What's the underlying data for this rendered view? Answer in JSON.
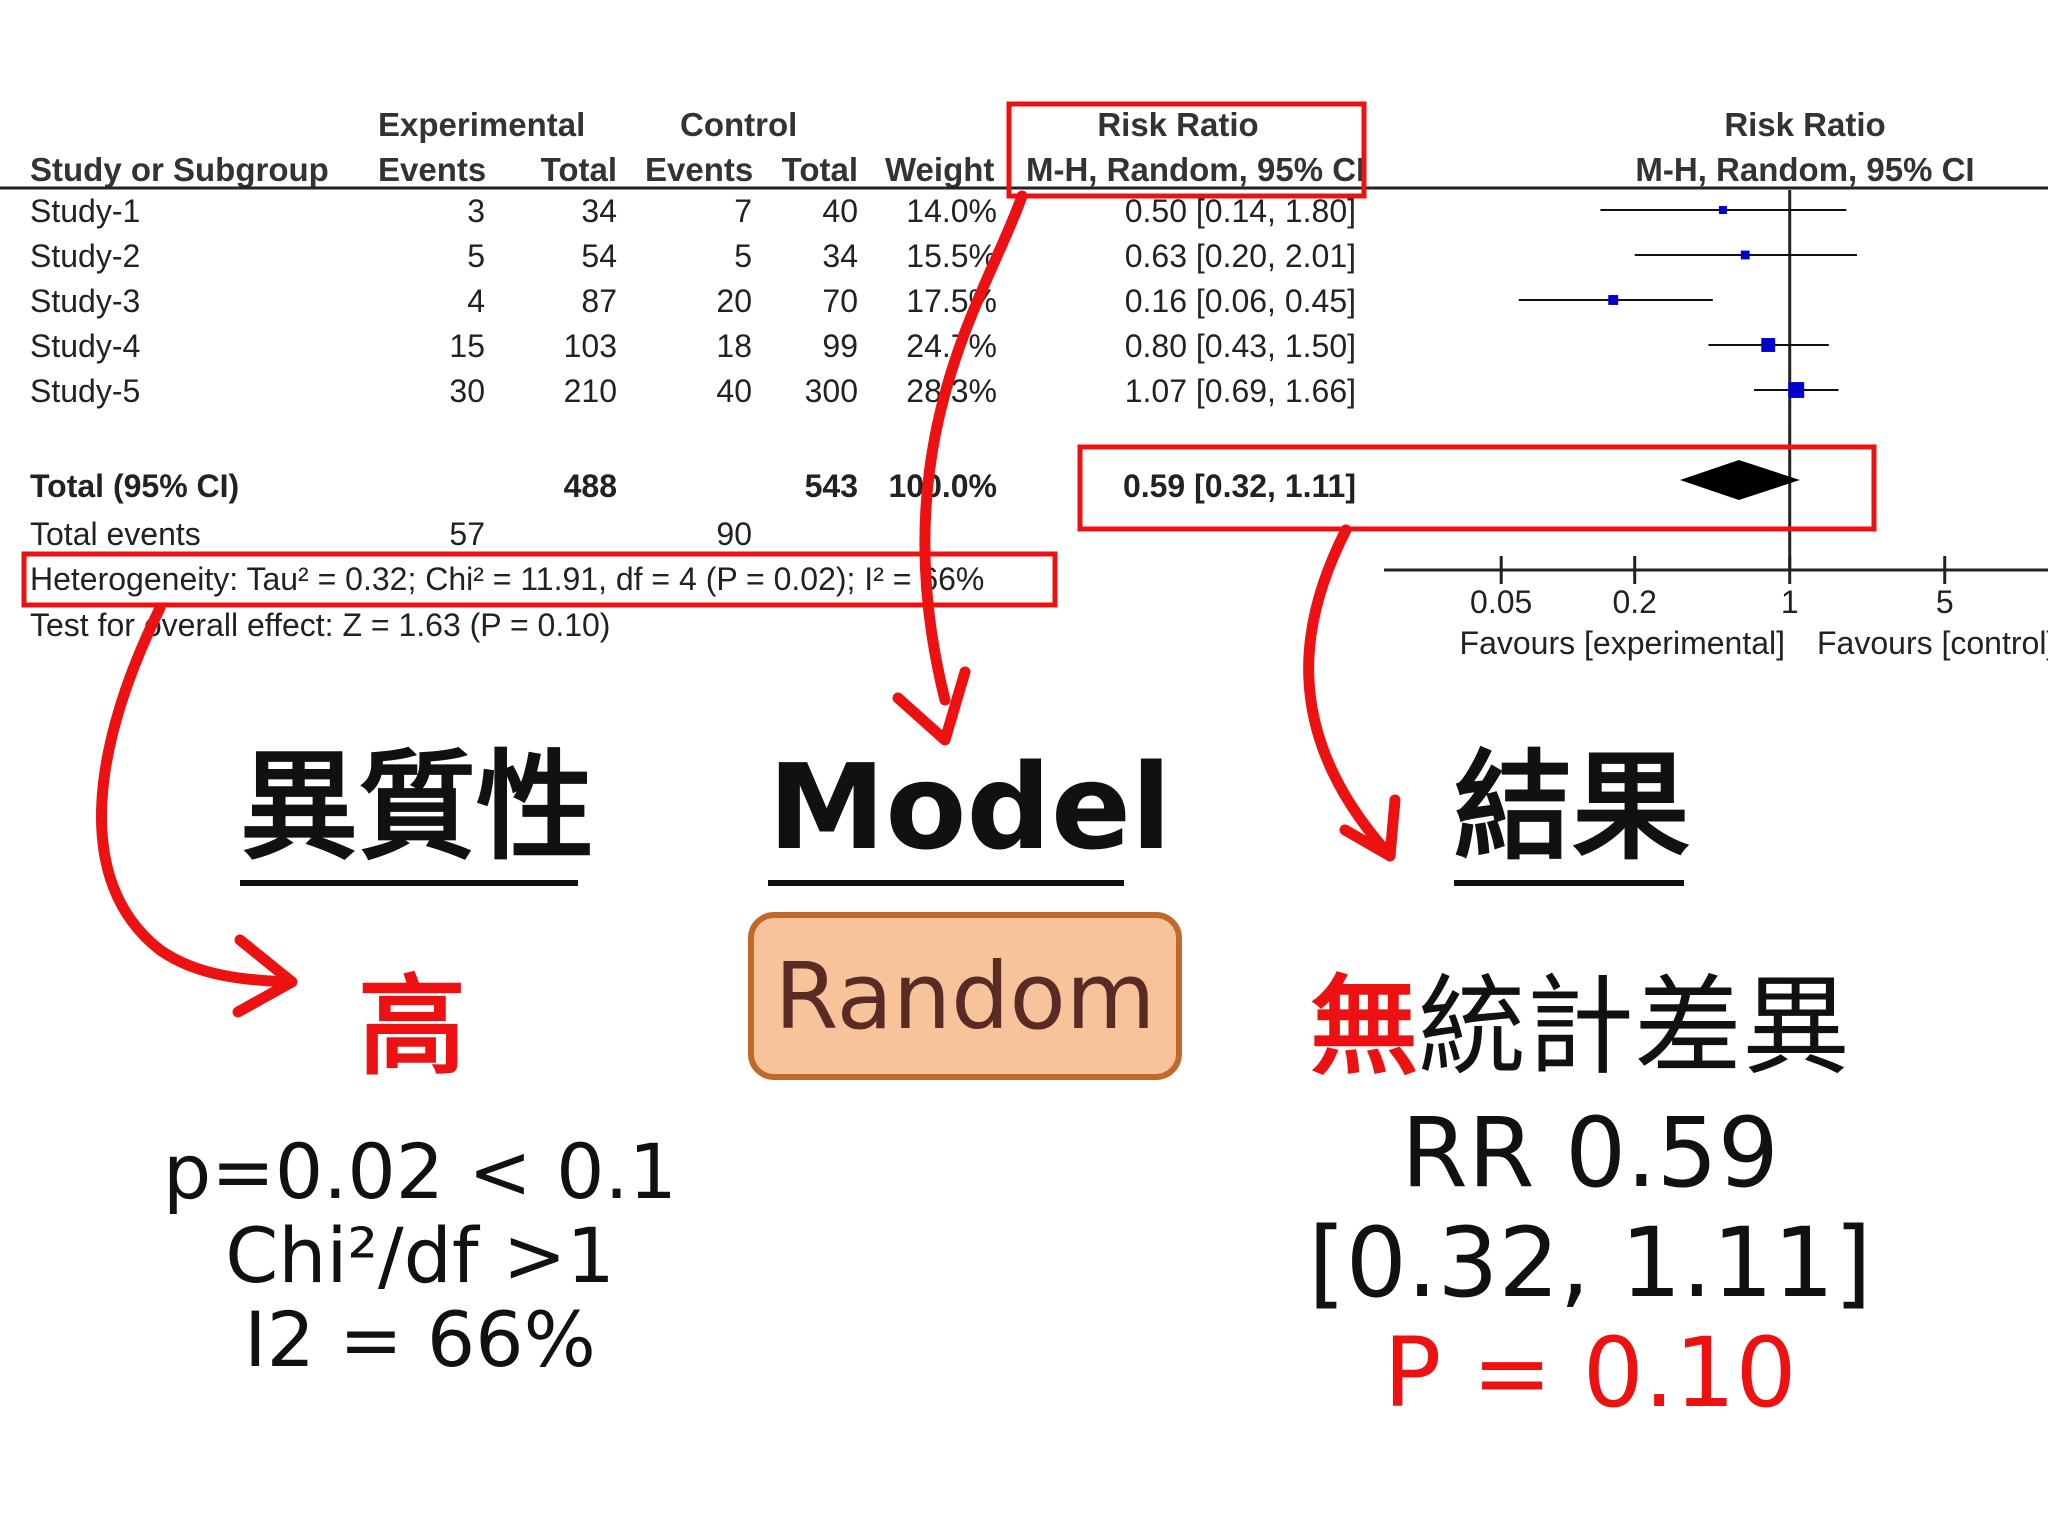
{
  "table": {
    "headers": {
      "experimental_group": "Experimental",
      "control_group": "Control",
      "risk_ratio": "Risk Ratio",
      "study_col": "Study or Subgroup",
      "events": "Events",
      "total": "Total",
      "weight": "Weight",
      "method": "M-H, Random, 95% CI"
    },
    "rows": [
      {
        "study": "Study-1",
        "exp_events": "3",
        "exp_total": "34",
        "ctl_events": "7",
        "ctl_total": "40",
        "weight": "14.0%",
        "rr": "0.50 [0.14, 1.80]"
      },
      {
        "study": "Study-2",
        "exp_events": "5",
        "exp_total": "54",
        "ctl_events": "5",
        "ctl_total": "34",
        "weight": "15.5%",
        "rr": "0.63 [0.20, 2.01]"
      },
      {
        "study": "Study-3",
        "exp_events": "4",
        "exp_total": "87",
        "ctl_events": "20",
        "ctl_total": "70",
        "weight": "17.5%",
        "rr": "0.16 [0.06, 0.45]"
      },
      {
        "study": "Study-4",
        "exp_events": "15",
        "exp_total": "103",
        "ctl_events": "18",
        "ctl_total": "99",
        "weight": "24.7%",
        "rr": "0.80 [0.43, 1.50]"
      },
      {
        "study": "Study-5",
        "exp_events": "30",
        "exp_total": "210",
        "ctl_events": "40",
        "ctl_total": "300",
        "weight": "28.3%",
        "rr": "1.07 [0.69, 1.66]"
      }
    ],
    "total": {
      "label": "Total (95% CI)",
      "exp_total": "488",
      "ctl_total": "543",
      "weight": "100.0%",
      "rr": "0.59 [0.32, 1.11]"
    },
    "total_events": {
      "label": "Total events",
      "exp": "57",
      "ctl": "90"
    },
    "heterogeneity": "Heterogeneity: Tau² = 0.32; Chi² = 11.91, df = 4 (P = 0.02); I² = 66%",
    "overall_effect": "Test for overall effect: Z = 1.63 (P = 0.10)"
  },
  "chart_data": {
    "type": "scatter",
    "title": "Risk Ratio",
    "subtitle": "M-H, Random, 95% CI",
    "scale": "log",
    "xlim": [
      0.03,
      8
    ],
    "ticks": [
      0.05,
      0.2,
      1,
      5
    ],
    "tick_labels": [
      "0.05",
      "0.2",
      "1",
      "5"
    ],
    "xlabel_left": "Favours [experimental]",
    "xlabel_right": "Favours [control]",
    "series": [
      {
        "values": [
          {
            "rr": 0.5,
            "lo": 0.14,
            "hi": 1.8,
            "weight": 14.0
          },
          {
            "rr": 0.63,
            "lo": 0.2,
            "hi": 2.01,
            "weight": 15.5
          },
          {
            "rr": 0.16,
            "lo": 0.06,
            "hi": 0.45,
            "weight": 17.5
          },
          {
            "rr": 0.8,
            "lo": 0.43,
            "hi": 1.5,
            "weight": 24.7
          },
          {
            "rr": 1.07,
            "lo": 0.69,
            "hi": 1.66,
            "weight": 28.3
          }
        ]
      }
    ],
    "pooled": {
      "rr": 0.59,
      "lo": 0.32,
      "hi": 1.11
    },
    "marker_color": "#0000cc",
    "diamond_color": "#000000"
  },
  "colors": {
    "highlight": "#ee1111",
    "random_fill": "#f8c29a",
    "random_border": "#c06a2a",
    "random_text": "#5a2a24"
  },
  "annotations": {
    "heterogeneity_heading": "異質性",
    "model_heading": "Model",
    "result_heading": "結果",
    "heterogeneity_level": "高",
    "model_value": "Random",
    "result_highlight": "無",
    "result_rest": "統計差異",
    "het_lines": [
      "p=0.02 < 0.1",
      "Chi²/df >1",
      "I2 = 66%"
    ],
    "result_lines": [
      "RR 0.59",
      "[0.32, 1.11]"
    ],
    "result_p": "P = 0.10"
  }
}
